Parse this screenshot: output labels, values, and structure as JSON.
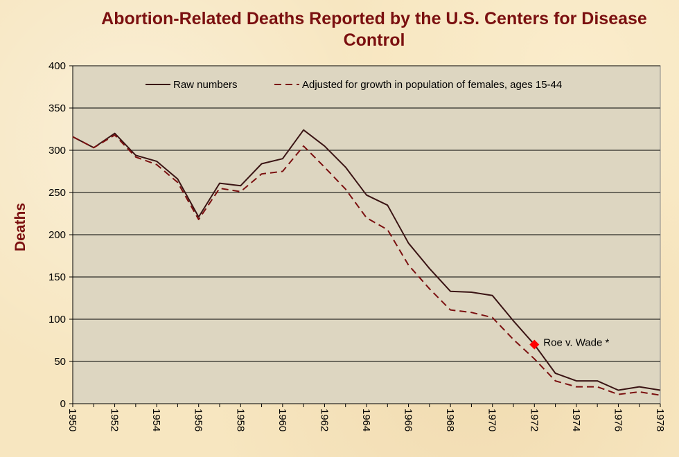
{
  "chart_data": {
    "type": "line",
    "title": "Abortion-Related Deaths Reported by the U.S. Centers for Disease Control",
    "xlabel": "",
    "ylabel": "Deaths",
    "ylim": [
      0,
      400
    ],
    "xlim": [
      1950,
      1978
    ],
    "yticks": [
      0,
      50,
      100,
      150,
      200,
      250,
      300,
      350,
      400
    ],
    "xticks": [
      1950,
      1952,
      1954,
      1956,
      1958,
      1960,
      1962,
      1964,
      1966,
      1968,
      1970,
      1972,
      1974,
      1976,
      1978
    ],
    "grid": "horizontal",
    "legend_position": "top",
    "x": [
      1950,
      1951,
      1952,
      1953,
      1954,
      1955,
      1956,
      1957,
      1958,
      1959,
      1960,
      1961,
      1962,
      1963,
      1964,
      1965,
      1966,
      1967,
      1968,
      1969,
      1970,
      1971,
      1972,
      1973,
      1974,
      1975,
      1976,
      1977,
      1978
    ],
    "series": [
      {
        "name": "Raw numbers",
        "style": "solid",
        "color": "#3a1414",
        "values": [
          316,
          303,
          320,
          294,
          287,
          266,
          221,
          261,
          258,
          284,
          290,
          324,
          305,
          280,
          247,
          235,
          190,
          160,
          133,
          132,
          128,
          98,
          70,
          36,
          27,
          27,
          16,
          20,
          16
        ]
      },
      {
        "name": "Adjusted for growth in population of females, ages 15-44",
        "style": "dashed",
        "color": "#7b1010",
        "values": [
          316,
          303,
          318,
          292,
          283,
          262,
          218,
          255,
          251,
          272,
          275,
          305,
          280,
          254,
          220,
          206,
          164,
          136,
          111,
          108,
          102,
          76,
          53,
          27,
          20,
          20,
          11,
          14,
          10
        ]
      }
    ],
    "annotations": [
      {
        "text": "Roe v. Wade *",
        "x": 1972,
        "y": 70,
        "marker": "diamond",
        "color": "#ff0000"
      }
    ]
  },
  "colors": {
    "plot_background": "#ddd6c1",
    "title": "#7b1010",
    "axis": "#000000"
  }
}
